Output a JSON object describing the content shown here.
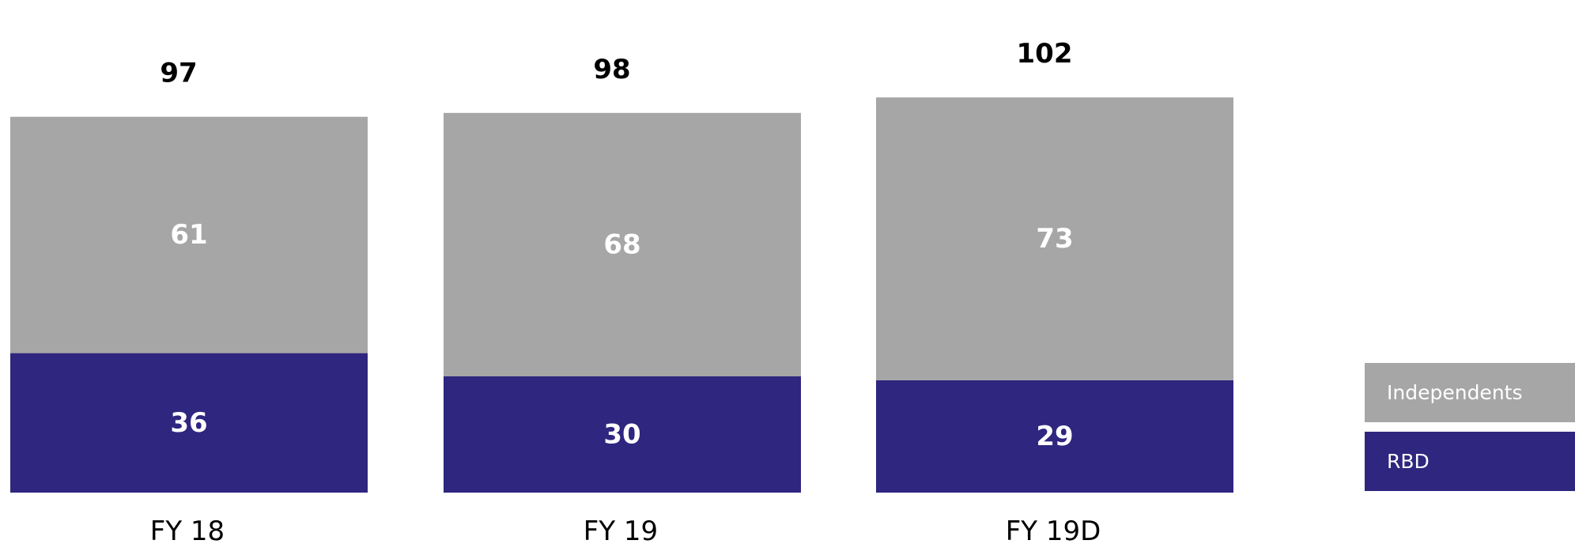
{
  "chart_data": {
    "type": "bar",
    "stacked": true,
    "categories": [
      "FY 18",
      "FY 19",
      "FY 19D"
    ],
    "totals": [
      97,
      98,
      102
    ],
    "series": [
      {
        "name": "RBD",
        "values": [
          36,
          30,
          29
        ],
        "color": "#2e267f"
      },
      {
        "name": "Independents",
        "values": [
          61,
          68,
          73
        ],
        "color": "#a6a6a6"
      }
    ],
    "legend_position": "right",
    "grid": false,
    "ylim": [
      0,
      102
    ]
  }
}
